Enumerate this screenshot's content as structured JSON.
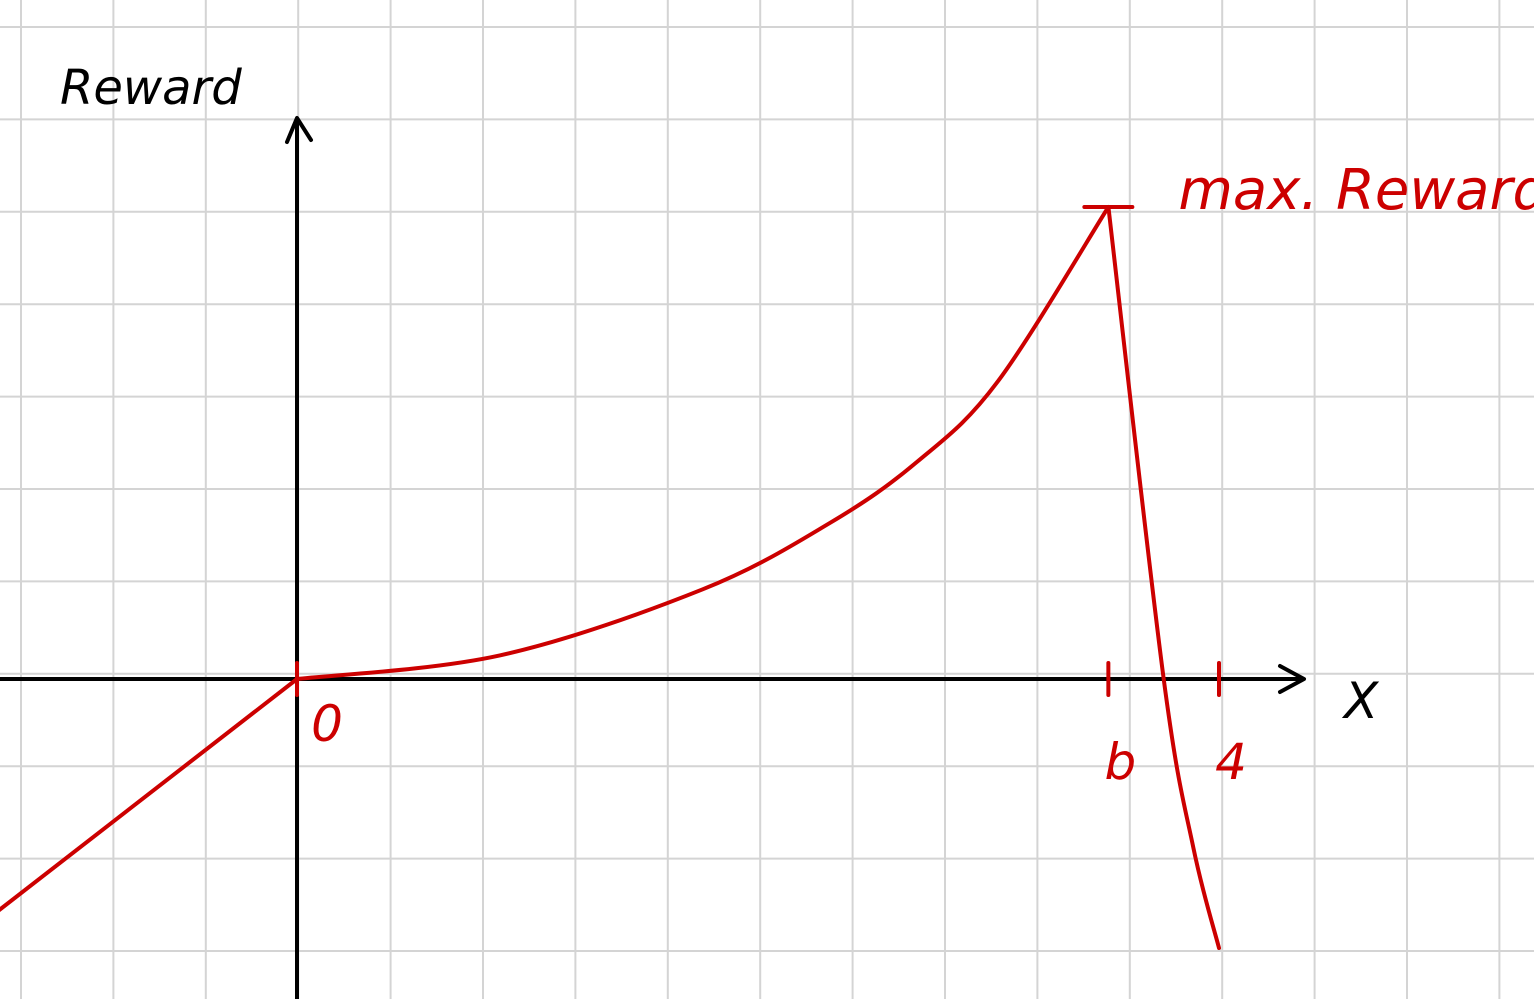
{
  "chart_data": {
    "type": "line",
    "title": "",
    "xlabel": "X",
    "ylabel": "Reward",
    "grid": true,
    "colors": {
      "background": "#ffffff",
      "grid": "#d4d4d4",
      "axes": "#000000",
      "curve": "#cc0000"
    },
    "x_ticks": [
      {
        "label": "0",
        "value": 0
      },
      {
        "label": "b",
        "value": 3.52
      },
      {
        "label": "4",
        "value": 4
      }
    ],
    "annotations": [
      {
        "text": "max. Reward",
        "x": 3.52,
        "y": 1
      }
    ],
    "series": [
      {
        "values": [
          {
            "x": -1.61,
            "y": -0.61
          },
          {
            "x": 0,
            "y": 0
          },
          {
            "x": 0.88,
            "y": 0.05
          },
          {
            "x": 1.76,
            "y": 0.19
          },
          {
            "x": 2.31,
            "y": 0.33
          },
          {
            "x": 2.69,
            "y": 0.46
          },
          {
            "x": 3.04,
            "y": 0.63
          },
          {
            "x": 3.52,
            "y": 1
          },
          {
            "x": 3.76,
            "y": 0
          },
          {
            "x": 3.89,
            "y": -0.36
          },
          {
            "x": 4,
            "y": -0.57
          }
        ]
      }
    ]
  }
}
